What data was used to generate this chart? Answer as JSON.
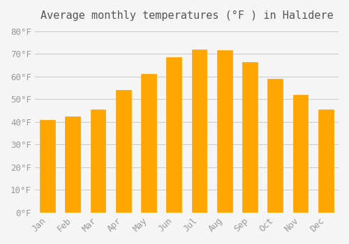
{
  "title": "Average monthly temperatures (°F ) in Halıdere",
  "months": [
    "Jan",
    "Feb",
    "Mar",
    "Apr",
    "May",
    "Jun",
    "Jul",
    "Aug",
    "Sep",
    "Oct",
    "Nov",
    "Dec"
  ],
  "values": [
    41,
    42.5,
    45.5,
    54,
    61,
    68.5,
    72,
    71.5,
    66.5,
    59,
    52,
    45.5
  ],
  "bar_color": "#FFA500",
  "bar_edge_color": "#FFD700",
  "background_color": "#F5F5F5",
  "ylim": [
    0,
    82
  ],
  "ytick_step": 10,
  "title_fontsize": 11,
  "tick_fontsize": 9,
  "grid_color": "#CCCCCC"
}
